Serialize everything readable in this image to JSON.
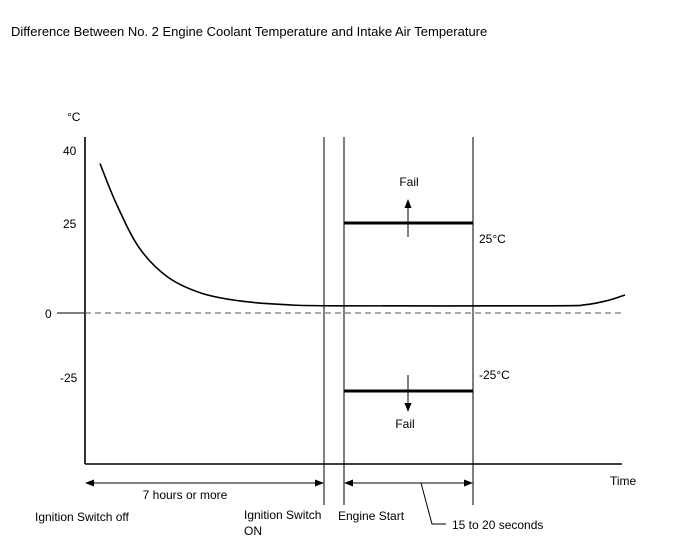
{
  "chart_data": {
    "type": "line",
    "title": "Difference Between No. 2 Engine Coolant Temperature and Intake Air Temperature",
    "ylabel": "°C",
    "xlabel": "Time",
    "ytick_values": [
      40,
      25,
      0,
      -25
    ],
    "ytick_labels": [
      "40",
      "25",
      "0",
      "-25"
    ],
    "ylim": [
      -38,
      44
    ],
    "series": [
      {
        "values_description": "temperature difference over time",
        "points": [
          [
            0.0,
            41.5
          ],
          [
            0.03,
            30
          ],
          [
            0.07,
            18
          ],
          [
            0.12,
            10
          ],
          [
            0.18,
            5.5
          ],
          [
            0.25,
            3.3
          ],
          [
            0.33,
            2.3
          ],
          [
            0.42,
            2.0
          ],
          [
            0.8,
            2.0
          ],
          [
            0.86,
            2.3
          ],
          [
            0.9,
            3.5
          ],
          [
            0.93,
            5.0
          ]
        ]
      }
    ],
    "thresholds": [
      {
        "value": 25,
        "label": "25°C",
        "fail_label": "Fail",
        "direction": "up"
      },
      {
        "value": -25,
        "label": "-25°C",
        "fail_label": "Fail",
        "direction": "down"
      }
    ],
    "events": [
      {
        "name": "ignition-switch-off",
        "label": "Ignition Switch off"
      },
      {
        "name": "ignition-switch-on",
        "label_line1": "Ignition Switch",
        "label_line2": "ON"
      },
      {
        "name": "engine-start",
        "label": "Engine Start"
      }
    ],
    "intervals": [
      {
        "name": "off-to-on",
        "label": "7 hours or more"
      },
      {
        "name": "start-window",
        "label": "15 to 20 seconds"
      }
    ]
  }
}
